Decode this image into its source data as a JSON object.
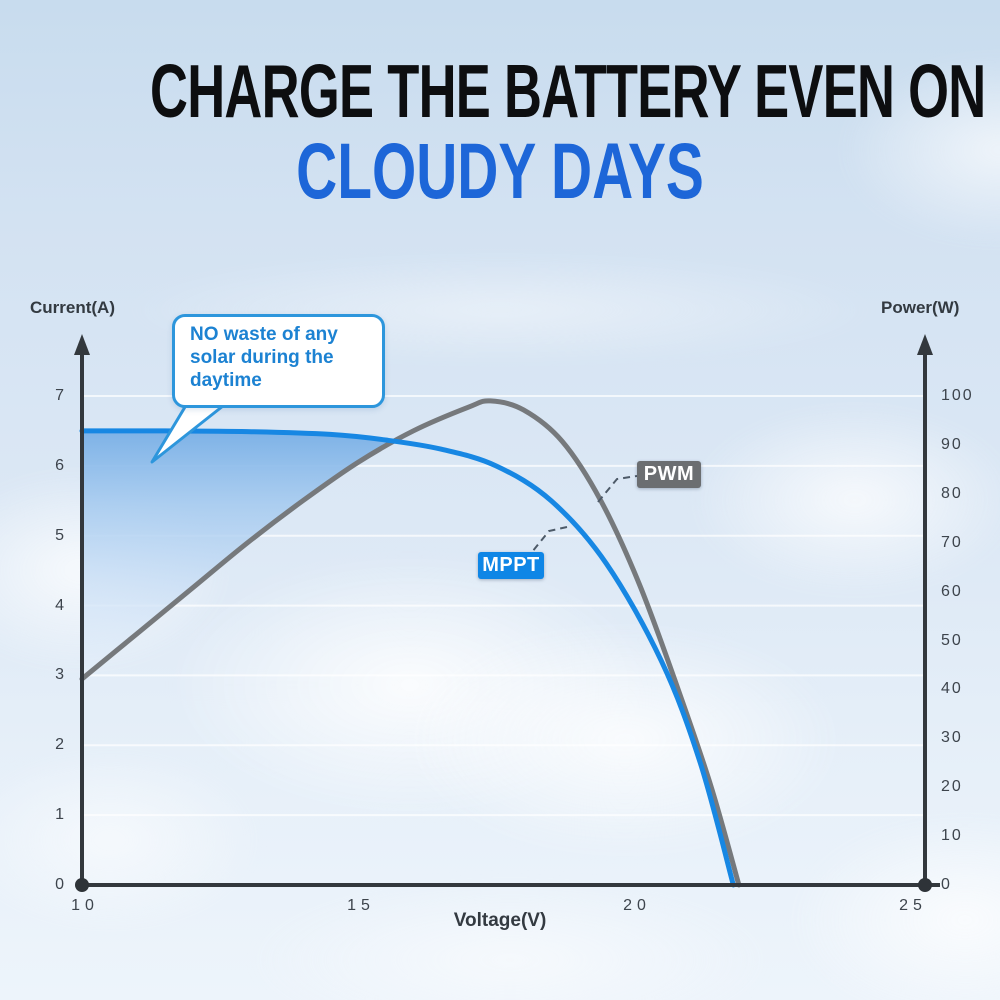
{
  "title": {
    "line1": "CHARGE THE BATTERY EVEN ON",
    "line2": "CLOUDY DAYS"
  },
  "callout": {
    "line1": "NO waste of any",
    "line2": "solar during the",
    "line3": "daytime"
  },
  "labels": {
    "pwm": "PWM",
    "mppt": "MPPT"
  },
  "axes": {
    "left_title": "Current(A)",
    "right_title": "Power(W)",
    "x_title": "Voltage(V)",
    "left_ticks": [
      "0",
      "1",
      "2",
      "3",
      "4",
      "5",
      "6",
      "7"
    ],
    "right_ticks": [
      "0",
      "10",
      "20",
      "30",
      "40",
      "50",
      "60",
      "70",
      "80",
      "90",
      "100"
    ],
    "x_ticks": [
      "10",
      "15",
      "20",
      "25"
    ]
  },
  "colors": {
    "title_black": "#0d0e10",
    "title_blue": "#1d66d8",
    "mppt_curve": "#1787e3",
    "pwm_curve": "#76797c",
    "mppt_box": "#0f86e6",
    "pwm_box": "#6b6e71",
    "callout_border": "#2d96dc",
    "callout_text": "#1c82d2",
    "axis": "#33383d",
    "gridline": "rgba(255,255,255,0.7)",
    "fill_top": "#78afe6",
    "fill_bottom": "#e6f0fb"
  },
  "chart_data": {
    "type": "line",
    "title": "",
    "xlabel": "Voltage(V)",
    "ylabel_left": "Current(A)",
    "ylabel_right": "Power(W)",
    "x_range": [
      10,
      25
    ],
    "y_left_range": [
      0,
      7
    ],
    "y_right_range": [
      0,
      100
    ],
    "grid": "horizontal white lines at each ampere from 1 to 7",
    "legend_position": "inline boxed labels with dashed leader lines",
    "series": [
      {
        "name": "MPPT",
        "color": "#1787e3",
        "axis": "left",
        "x": [
          10,
          11.5,
          13,
          14.5,
          15.5,
          16.5,
          17.5,
          18.5,
          19.5,
          20.5,
          21.2,
          21.8
        ],
        "y": [
          6.5,
          6.5,
          6.49,
          6.45,
          6.37,
          6.24,
          6.0,
          5.5,
          4.6,
          3.2,
          1.75,
          0
        ]
      },
      {
        "name": "PWM",
        "color": "#76797c",
        "axis": "left",
        "x": [
          10,
          11,
          12,
          13,
          14,
          15,
          16,
          17,
          17.4,
          18,
          18.7,
          19.4,
          20.1,
          20.8,
          21.4,
          21.9
        ],
        "y": [
          2.95,
          3.6,
          4.25,
          4.9,
          5.5,
          6.05,
          6.5,
          6.84,
          6.93,
          6.8,
          6.35,
          5.5,
          4.3,
          2.8,
          1.4,
          0
        ]
      }
    ],
    "shaded_region": "area between MPPT curve (top) and PWM curve (bottom) from 10V to ~15.8V, blue gradient fading downward",
    "annotation": "NO waste of any solar during the daytime"
  }
}
